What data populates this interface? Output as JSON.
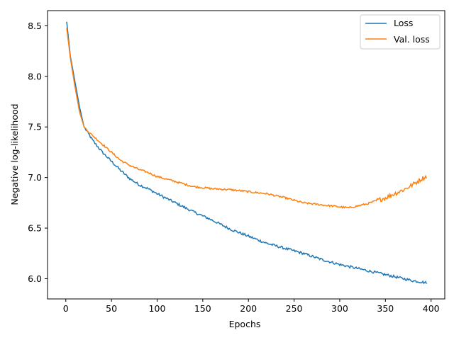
{
  "chart_data": {
    "type": "line",
    "title": "",
    "xlabel": "Epochs",
    "ylabel": "Negative log-likelihood",
    "xlim": [
      -20,
      415
    ],
    "ylim": [
      5.8,
      8.65
    ],
    "xticks": [
      0,
      50,
      100,
      150,
      200,
      250,
      300,
      350,
      400
    ],
    "xtick_labels": [
      "0",
      "50",
      "100",
      "150",
      "200",
      "250",
      "300",
      "350",
      "400"
    ],
    "yticks": [
      6.0,
      6.5,
      7.0,
      7.5,
      8.0,
      8.5
    ],
    "ytick_labels": [
      "6.0",
      "6.5",
      "7.0",
      "7.5",
      "8.0",
      "8.5"
    ],
    "grid": false,
    "legend_position": "top-right",
    "series": [
      {
        "name": "Loss",
        "color": "#1f77b4",
        "x": [
          1,
          5,
          10,
          15,
          20,
          25,
          30,
          40,
          50,
          60,
          70,
          80,
          90,
          100,
          120,
          140,
          160,
          180,
          200,
          220,
          240,
          260,
          280,
          300,
          320,
          340,
          360,
          380,
          395
        ],
        "y": [
          8.54,
          8.2,
          7.95,
          7.7,
          7.5,
          7.43,
          7.36,
          7.25,
          7.16,
          7.07,
          6.99,
          6.93,
          6.89,
          6.84,
          6.75,
          6.66,
          6.58,
          6.49,
          6.42,
          6.35,
          6.3,
          6.25,
          6.19,
          6.14,
          6.1,
          6.06,
          6.02,
          5.98,
          5.96
        ]
      },
      {
        "name": "Val. loss",
        "color": "#ff7f0e",
        "x": [
          1,
          5,
          10,
          15,
          20,
          25,
          30,
          40,
          50,
          60,
          70,
          80,
          90,
          100,
          120,
          140,
          160,
          180,
          200,
          220,
          240,
          260,
          280,
          300,
          310,
          320,
          330,
          340,
          350,
          360,
          370,
          380,
          390,
          395
        ],
        "y": [
          8.48,
          8.18,
          7.9,
          7.65,
          7.5,
          7.45,
          7.41,
          7.33,
          7.25,
          7.17,
          7.12,
          7.08,
          7.05,
          7.01,
          6.96,
          6.91,
          6.89,
          6.88,
          6.86,
          6.84,
          6.8,
          6.75,
          6.73,
          6.71,
          6.7,
          6.72,
          6.74,
          6.77,
          6.8,
          6.84,
          6.88,
          6.93,
          6.99,
          7.01
        ]
      }
    ]
  }
}
